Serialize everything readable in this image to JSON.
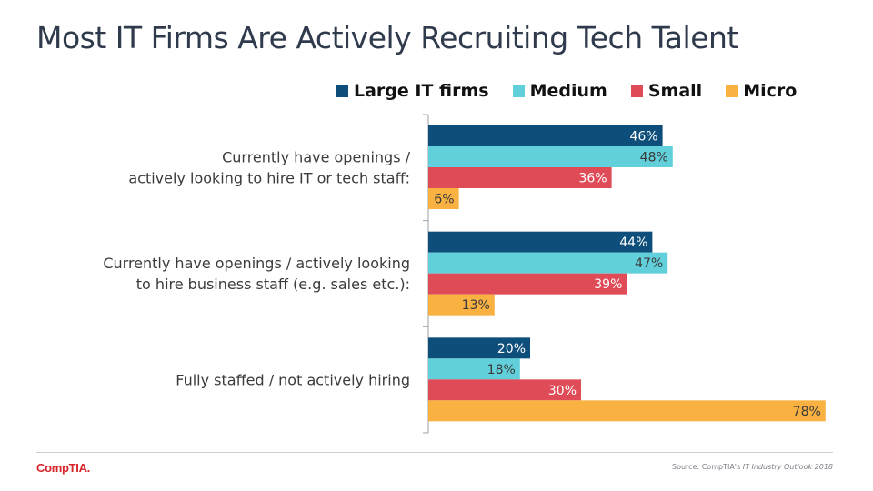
{
  "title": "Most IT Firms Are Actively Recruiting Tech Talent",
  "colors": {
    "large": "#0d4e7a",
    "medium": "#62d0da",
    "small": "#df4b57",
    "micro": "#f9b242"
  },
  "footer": {
    "logo": "CompTIA.",
    "source_prefix": "Source: CompTIA's ",
    "source_title": "IT Industry Outlook 2018"
  },
  "chart_data": {
    "type": "bar",
    "orientation": "horizontal",
    "categories": [
      [
        "Currently have openings /",
        "actively looking to hire IT or tech staff:"
      ],
      [
        "Currently have openings / actively looking",
        "to hire business staff (e.g. sales etc.):"
      ],
      [
        "Fully staffed / not actively hiring"
      ]
    ],
    "series": [
      {
        "name": "Large IT firms",
        "values": [
          46,
          44,
          20
        ]
      },
      {
        "name": "Medium",
        "values": [
          48,
          47,
          18
        ]
      },
      {
        "name": "Small",
        "values": [
          36,
          39,
          30
        ]
      },
      {
        "name": "Micro",
        "values": [
          6,
          13,
          78
        ]
      }
    ],
    "value_suffix": "%",
    "xlim": [
      0,
      100
    ],
    "grid": false,
    "legend": "top-right"
  }
}
